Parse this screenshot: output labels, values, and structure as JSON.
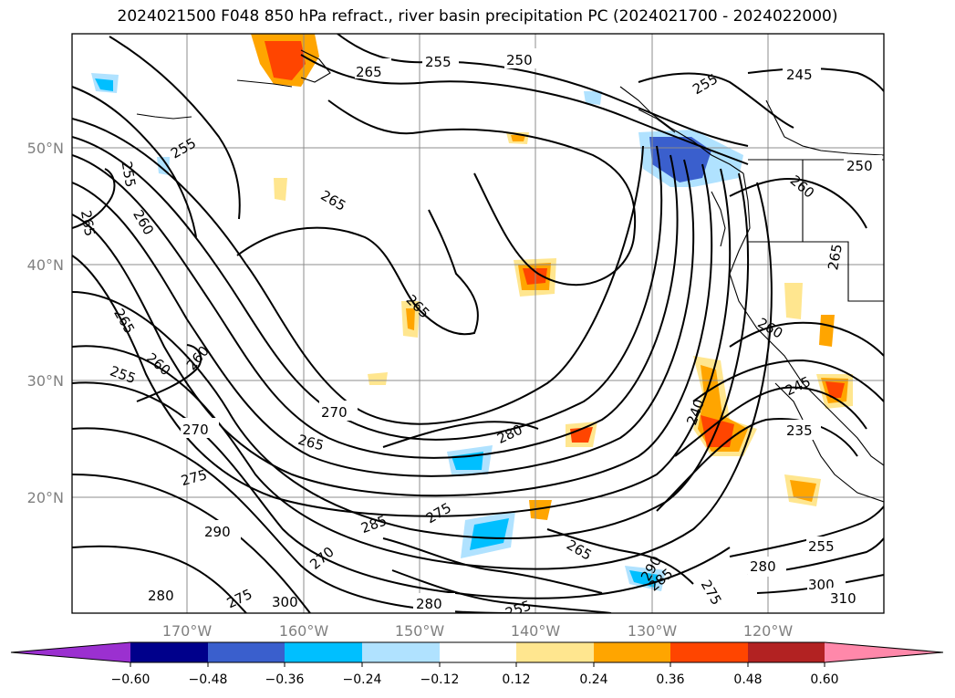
{
  "title": "2024021500 F048 850 hPa refract., river basin precipitation PC (2024021700 - 2024022000)",
  "latitude_labels": [
    "50°N",
    "40°N",
    "30°N",
    "20°N"
  ],
  "longitude_labels": [
    "170°W",
    "160°W",
    "150°W",
    "140°W",
    "130°W",
    "120°W"
  ],
  "colorbar": {
    "ticks": [
      "−0.60",
      "−0.48",
      "−0.36",
      "−0.24",
      "−0.12",
      "0.12",
      "0.24",
      "0.36",
      "0.48",
      "0.60"
    ],
    "colors": [
      "#9b30d0",
      "#00008b",
      "#3a5fcd",
      "#00bfff",
      "#b0e2ff",
      "#ffffff",
      "#ffe68f",
      "#ffa500",
      "#ff4500",
      "#b22222",
      "#ff88aa"
    ]
  },
  "contour_labels": [
    "265",
    "255",
    "250",
    "255",
    "245",
    "250",
    "255",
    "255",
    "260",
    "265",
    "265",
    "260",
    "265",
    "265",
    "260",
    "255",
    "260",
    "270",
    "265",
    "275",
    "270",
    "280",
    "275",
    "285",
    "290",
    "290",
    "280",
    "275",
    "300",
    "280",
    "255",
    "270",
    "285",
    "275",
    "240",
    "235",
    "245",
    "280",
    "265",
    "255",
    "300",
    "310",
    "260",
    "265"
  ]
}
